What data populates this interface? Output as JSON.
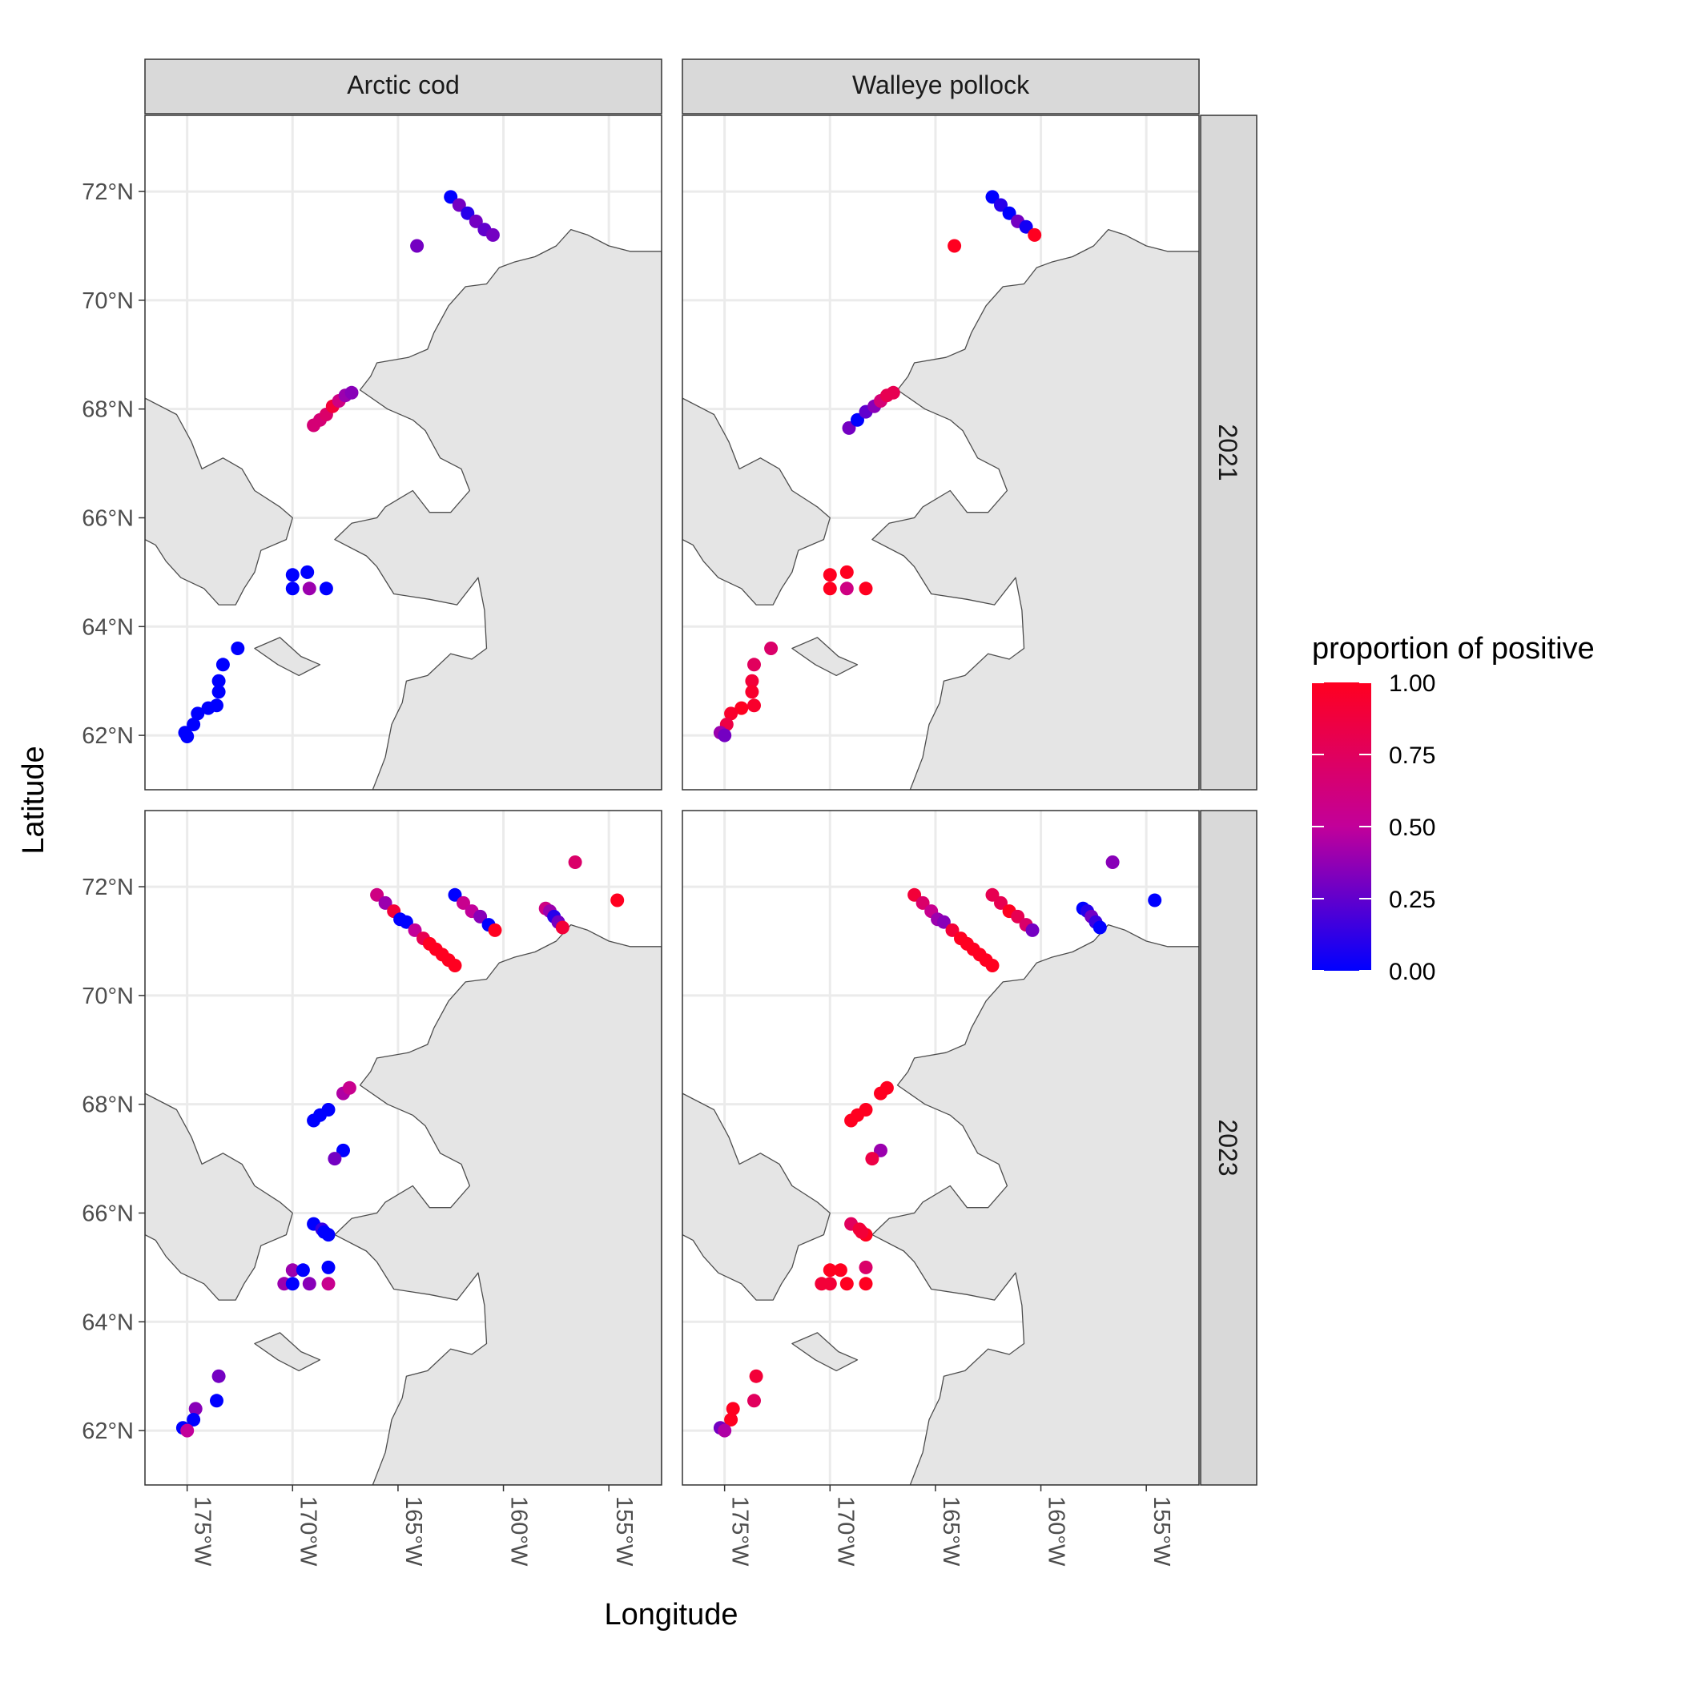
{
  "chart_data": {
    "type": "scatter",
    "facet_cols": [
      "Arctic cod",
      "Walleye pollock"
    ],
    "facet_rows": [
      "2021",
      "2023"
    ],
    "xlabel": "Longitude",
    "ylabel": "Latitude",
    "xlim": [
      -177,
      -152.5
    ],
    "ylim": [
      61,
      73.4
    ],
    "x_ticks": [
      -175,
      -170,
      -165,
      -160,
      -155
    ],
    "x_tick_labels": [
      "175°W",
      "170°W",
      "165°W",
      "160°W",
      "155°W"
    ],
    "y_ticks": [
      62,
      64,
      66,
      68,
      70,
      72
    ],
    "y_tick_labels": [
      "62°N",
      "64°N",
      "66°N",
      "68°N",
      "70°N",
      "72°N"
    ],
    "grid": true,
    "legend": {
      "title": "proportion of positive",
      "position": "right",
      "low_color": "#0000ff",
      "high_color": "#ff0000",
      "ticks": [
        0,
        0.25,
        0.5,
        0.75,
        1
      ],
      "tick_labels": [
        "0.00",
        "0.25",
        "0.50",
        "0.75",
        "1.00"
      ]
    },
    "land_color": "#e5e5e5",
    "panels": [
      {
        "species": "Arctic cod",
        "year": "2021",
        "points": [
          [
            -162.5,
            71.9,
            0.0
          ],
          [
            -162.1,
            71.75,
            0.3
          ],
          [
            -161.7,
            71.6,
            0.1
          ],
          [
            -161.3,
            71.45,
            0.3
          ],
          [
            -160.9,
            71.3,
            0.25
          ],
          [
            -160.5,
            71.2,
            0.3
          ],
          [
            -164.1,
            71.0,
            0.3
          ],
          [
            -169.0,
            67.7,
            0.65
          ],
          [
            -168.7,
            67.8,
            0.65
          ],
          [
            -168.4,
            67.9,
            0.7
          ],
          [
            -168.1,
            68.05,
            0.9
          ],
          [
            -167.8,
            68.15,
            0.6
          ],
          [
            -167.5,
            68.25,
            0.4
          ],
          [
            -167.2,
            68.3,
            0.35
          ],
          [
            -170.0,
            64.95,
            0.0
          ],
          [
            -169.3,
            65.0,
            0.0
          ],
          [
            -170.0,
            64.7,
            0.0
          ],
          [
            -169.2,
            64.7,
            0.4
          ],
          [
            -168.4,
            64.7,
            0.0
          ],
          [
            -172.6,
            63.6,
            0.0
          ],
          [
            -173.3,
            63.3,
            0.0
          ],
          [
            -173.5,
            63.0,
            0.0
          ],
          [
            -173.5,
            62.8,
            0.0
          ],
          [
            -173.6,
            62.55,
            0.0
          ],
          [
            -174.0,
            62.5,
            0.0
          ],
          [
            -174.5,
            62.4,
            0.0
          ],
          [
            -174.7,
            62.2,
            0.0
          ],
          [
            -175.1,
            62.05,
            0.0
          ],
          [
            -175.0,
            61.98,
            0.0
          ]
        ]
      },
      {
        "species": "Walleye pollock",
        "year": "2021",
        "points": [
          [
            -162.3,
            71.9,
            0.0
          ],
          [
            -161.9,
            71.75,
            0.1
          ],
          [
            -161.5,
            71.6,
            0.0
          ],
          [
            -161.1,
            71.45,
            0.3
          ],
          [
            -160.7,
            71.35,
            0.05
          ],
          [
            -160.3,
            71.2,
            1.0
          ],
          [
            -164.1,
            71.0,
            1.0
          ],
          [
            -169.1,
            67.65,
            0.3
          ],
          [
            -168.7,
            67.8,
            0.0
          ],
          [
            -168.3,
            67.95,
            0.25
          ],
          [
            -167.9,
            68.05,
            0.35
          ],
          [
            -167.6,
            68.15,
            0.65
          ],
          [
            -167.3,
            68.25,
            0.8
          ],
          [
            -167.0,
            68.3,
            0.8
          ],
          [
            -170.0,
            64.95,
            1.0
          ],
          [
            -169.2,
            65.0,
            1.0
          ],
          [
            -170.0,
            64.7,
            1.0
          ],
          [
            -169.2,
            64.7,
            0.6
          ],
          [
            -168.3,
            64.7,
            1.0
          ],
          [
            -172.8,
            63.6,
            0.7
          ],
          [
            -173.6,
            63.3,
            0.75
          ],
          [
            -173.7,
            63.0,
            0.9
          ],
          [
            -173.7,
            62.8,
            0.95
          ],
          [
            -173.6,
            62.55,
            0.95
          ],
          [
            -174.2,
            62.5,
            1.0
          ],
          [
            -174.7,
            62.4,
            0.95
          ],
          [
            -174.9,
            62.2,
            0.85
          ],
          [
            -175.2,
            62.05,
            0.4
          ],
          [
            -175.0,
            62.0,
            0.3
          ]
        ]
      },
      {
        "species": "Arctic cod",
        "year": "2023",
        "points": [
          [
            -166.0,
            71.85,
            0.6
          ],
          [
            -165.6,
            71.7,
            0.4
          ],
          [
            -165.2,
            71.55,
            0.9
          ],
          [
            -164.9,
            71.4,
            0.0
          ],
          [
            -164.6,
            71.35,
            0.0
          ],
          [
            -164.2,
            71.2,
            0.5
          ],
          [
            -163.8,
            71.05,
            0.8
          ],
          [
            -163.5,
            70.95,
            1.0
          ],
          [
            -163.2,
            70.85,
            1.0
          ],
          [
            -162.9,
            70.75,
            1.0
          ],
          [
            -162.6,
            70.65,
            1.0
          ],
          [
            -162.3,
            70.55,
            1.0
          ],
          [
            -162.3,
            71.85,
            0.0
          ],
          [
            -161.9,
            71.7,
            0.55
          ],
          [
            -161.5,
            71.55,
            0.5
          ],
          [
            -161.1,
            71.45,
            0.35
          ],
          [
            -160.7,
            71.3,
            0.0
          ],
          [
            -160.4,
            71.2,
            1.0
          ],
          [
            -158.0,
            71.6,
            0.6
          ],
          [
            -157.8,
            71.55,
            0.4
          ],
          [
            -157.6,
            71.45,
            0.1
          ],
          [
            -157.4,
            71.35,
            0.3
          ],
          [
            -157.2,
            71.25,
            0.9
          ],
          [
            -156.6,
            72.45,
            0.7
          ],
          [
            -154.6,
            71.75,
            1.0
          ],
          [
            -169.0,
            67.7,
            0.0
          ],
          [
            -168.7,
            67.8,
            0.0
          ],
          [
            -168.3,
            67.9,
            0.0
          ],
          [
            -167.6,
            68.2,
            0.45
          ],
          [
            -167.3,
            68.3,
            0.55
          ],
          [
            -167.6,
            67.15,
            0.0
          ],
          [
            -168.0,
            67.0,
            0.3
          ],
          [
            -169.0,
            65.8,
            0.0
          ],
          [
            -168.6,
            65.7,
            0.15
          ],
          [
            -168.3,
            65.6,
            0.0
          ],
          [
            -168.5,
            65.65,
            0.0
          ],
          [
            -170.0,
            64.95,
            0.4
          ],
          [
            -169.5,
            64.95,
            0.0
          ],
          [
            -168.3,
            65.0,
            0.0
          ],
          [
            -170.4,
            64.7,
            0.4
          ],
          [
            -170.0,
            64.7,
            0.0
          ],
          [
            -169.2,
            64.7,
            0.35
          ],
          [
            -168.3,
            64.7,
            0.55
          ],
          [
            -173.5,
            63.0,
            0.3
          ],
          [
            -173.6,
            62.55,
            0.0
          ],
          [
            -174.6,
            62.4,
            0.35
          ],
          [
            -174.7,
            62.2,
            0.0
          ],
          [
            -175.2,
            62.05,
            0.0
          ],
          [
            -175.0,
            62.0,
            0.5
          ]
        ]
      },
      {
        "species": "Walleye pollock",
        "year": "2023",
        "points": [
          [
            -166.0,
            71.85,
            0.9
          ],
          [
            -165.6,
            71.7,
            0.7
          ],
          [
            -165.2,
            71.55,
            0.55
          ],
          [
            -164.9,
            71.4,
            0.4
          ],
          [
            -164.6,
            71.35,
            0.35
          ],
          [
            -164.2,
            71.2,
            0.9
          ],
          [
            -163.8,
            71.05,
            1.0
          ],
          [
            -163.5,
            70.95,
            1.0
          ],
          [
            -163.2,
            70.85,
            1.0
          ],
          [
            -162.9,
            70.75,
            1.0
          ],
          [
            -162.6,
            70.65,
            1.0
          ],
          [
            -162.3,
            70.55,
            1.0
          ],
          [
            -162.3,
            71.85,
            0.8
          ],
          [
            -161.9,
            71.7,
            0.8
          ],
          [
            -161.5,
            71.55,
            1.0
          ],
          [
            -161.1,
            71.45,
            0.8
          ],
          [
            -160.7,
            71.3,
            0.7
          ],
          [
            -160.4,
            71.2,
            0.3
          ],
          [
            -158.0,
            71.6,
            0.0
          ],
          [
            -157.8,
            71.55,
            0.1
          ],
          [
            -157.6,
            71.45,
            0.3
          ],
          [
            -157.4,
            71.35,
            0.15
          ],
          [
            -157.2,
            71.25,
            0.0
          ],
          [
            -156.6,
            72.45,
            0.35
          ],
          [
            -154.6,
            71.75,
            0.0
          ],
          [
            -169.0,
            67.7,
            1.0
          ],
          [
            -168.7,
            67.8,
            1.0
          ],
          [
            -168.3,
            67.9,
            1.0
          ],
          [
            -167.6,
            68.2,
            1.0
          ],
          [
            -167.3,
            68.3,
            1.0
          ],
          [
            -167.6,
            67.15,
            0.4
          ],
          [
            -168.0,
            67.0,
            0.85
          ],
          [
            -169.0,
            65.8,
            0.75
          ],
          [
            -168.6,
            65.7,
            0.9
          ],
          [
            -168.3,
            65.6,
            1.0
          ],
          [
            -168.5,
            65.65,
            0.9
          ],
          [
            -170.0,
            64.95,
            1.0
          ],
          [
            -169.5,
            64.95,
            1.0
          ],
          [
            -168.3,
            65.0,
            0.7
          ],
          [
            -170.4,
            64.7,
            0.9
          ],
          [
            -170.0,
            64.7,
            0.9
          ],
          [
            -169.2,
            64.7,
            1.0
          ],
          [
            -168.3,
            64.7,
            1.0
          ],
          [
            -173.5,
            63.0,
            0.9
          ],
          [
            -173.6,
            62.55,
            0.75
          ],
          [
            -174.6,
            62.4,
            1.0
          ],
          [
            -174.7,
            62.2,
            1.0
          ],
          [
            -175.2,
            62.05,
            0.3
          ],
          [
            -175.0,
            62.0,
            0.45
          ]
        ]
      }
    ]
  }
}
